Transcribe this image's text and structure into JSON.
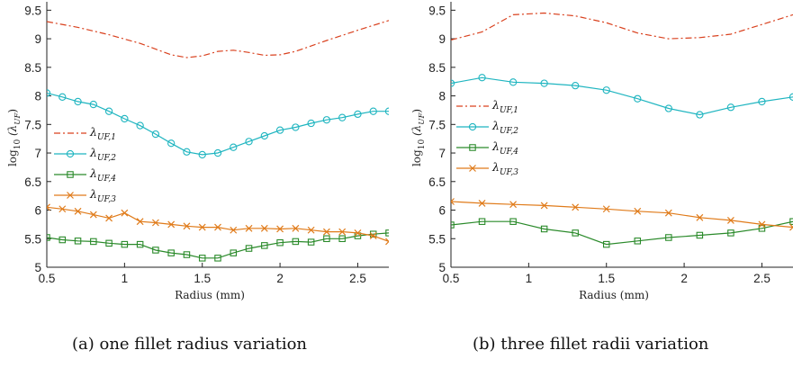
{
  "chart_data": [
    {
      "type": "line",
      "caption": "(a) one fillet radius variation",
      "xlabel": "Radius (mm)",
      "ylabel": "log10 (λUF)",
      "xlim": [
        0.5,
        2.7
      ],
      "ylim": [
        5,
        9.6
      ],
      "xticks": [
        "0.5",
        "1",
        "1.5",
        "2",
        "2.5"
      ],
      "yticks": [
        "5",
        "5.5",
        "6",
        "6.5",
        "7",
        "7.5",
        "8",
        "8.5",
        "9",
        "9.5"
      ],
      "legend_position": "left",
      "series": [
        {
          "name": "λUF,1",
          "color": "#d9411e",
          "marker": "none",
          "dash": "dashdot",
          "x": [
            0.5,
            0.7,
            0.9,
            1.1,
            1.3,
            1.4,
            1.5,
            1.6,
            1.7,
            1.8,
            1.9,
            2.0,
            2.1,
            2.3,
            2.5,
            2.7
          ],
          "y": [
            9.3,
            9.2,
            9.07,
            8.92,
            8.72,
            8.67,
            8.7,
            8.78,
            8.8,
            8.76,
            8.71,
            8.72,
            8.78,
            8.97,
            9.15,
            9.32
          ]
        },
        {
          "name": "λUF,2",
          "color": "#1fb5c0",
          "marker": "circle",
          "dash": "solid",
          "x": [
            0.5,
            0.6,
            0.7,
            0.8,
            0.9,
            1.0,
            1.1,
            1.2,
            1.3,
            1.4,
            1.5,
            1.6,
            1.7,
            1.8,
            1.9,
            2.0,
            2.1,
            2.2,
            2.3,
            2.4,
            2.5,
            2.6,
            2.7
          ],
          "y": [
            8.05,
            7.98,
            7.9,
            7.85,
            7.73,
            7.6,
            7.48,
            7.33,
            7.17,
            7.02,
            6.97,
            7.0,
            7.1,
            7.2,
            7.3,
            7.4,
            7.45,
            7.52,
            7.58,
            7.62,
            7.68,
            7.73,
            7.73
          ]
        },
        {
          "name": "λUF,4",
          "color": "#2a8a2a",
          "marker": "square",
          "dash": "solid",
          "x": [
            0.5,
            0.6,
            0.7,
            0.8,
            0.9,
            1.0,
            1.1,
            1.2,
            1.3,
            1.4,
            1.5,
            1.6,
            1.7,
            1.8,
            1.9,
            2.0,
            2.1,
            2.2,
            2.3,
            2.4,
            2.5,
            2.6,
            2.7
          ],
          "y": [
            5.52,
            5.48,
            5.46,
            5.45,
            5.42,
            5.4,
            5.4,
            5.3,
            5.25,
            5.22,
            5.16,
            5.16,
            5.25,
            5.33,
            5.38,
            5.43,
            5.45,
            5.44,
            5.5,
            5.5,
            5.55,
            5.58,
            5.6
          ]
        },
        {
          "name": "λUF,3",
          "color": "#e07b1a",
          "marker": "x",
          "dash": "solid",
          "x": [
            0.5,
            0.6,
            0.7,
            0.8,
            0.9,
            1.0,
            1.1,
            1.2,
            1.3,
            1.4,
            1.5,
            1.6,
            1.7,
            1.8,
            1.9,
            2.0,
            2.1,
            2.2,
            2.3,
            2.4,
            2.5,
            2.6,
            2.7
          ],
          "y": [
            6.05,
            6.02,
            5.98,
            5.92,
            5.86,
            5.95,
            5.8,
            5.78,
            5.75,
            5.72,
            5.7,
            5.7,
            5.65,
            5.68,
            5.68,
            5.67,
            5.68,
            5.65,
            5.62,
            5.62,
            5.6,
            5.55,
            5.45
          ]
        }
      ]
    },
    {
      "type": "line",
      "caption": "(b) three fillet radii variation",
      "xlabel": "Radius (mm)",
      "ylabel": "log10 (λUF)",
      "xlim": [
        0.5,
        2.7
      ],
      "ylim": [
        5,
        9.6
      ],
      "xticks": [
        "0.5",
        "1",
        "1.5",
        "2",
        "2.5"
      ],
      "yticks": [
        "5",
        "5.5",
        "6",
        "6.5",
        "7",
        "7.5",
        "8",
        "8.5",
        "9",
        "9.5"
      ],
      "legend_position": "left",
      "series": [
        {
          "name": "λUF,1",
          "color": "#d9411e",
          "marker": "none",
          "dash": "dashdot",
          "x": [
            0.5,
            0.7,
            0.9,
            1.1,
            1.3,
            1.5,
            1.7,
            1.9,
            2.1,
            2.3,
            2.5,
            2.7
          ],
          "y": [
            8.98,
            9.12,
            9.42,
            9.45,
            9.4,
            9.28,
            9.1,
            9.0,
            9.02,
            9.08,
            9.25,
            9.42
          ]
        },
        {
          "name": "λUF,2",
          "color": "#1fb5c0",
          "marker": "circle",
          "dash": "solid",
          "x": [
            0.5,
            0.7,
            0.9,
            1.1,
            1.3,
            1.5,
            1.7,
            1.9,
            2.1,
            2.3,
            2.5,
            2.7
          ],
          "y": [
            8.22,
            8.32,
            8.24,
            8.22,
            8.18,
            8.1,
            7.95,
            7.78,
            7.67,
            7.8,
            7.9,
            7.98
          ]
        },
        {
          "name": "λUF,4",
          "color": "#2a8a2a",
          "marker": "square",
          "dash": "solid",
          "x": [
            0.5,
            0.7,
            0.9,
            1.1,
            1.3,
            1.5,
            1.7,
            1.9,
            2.1,
            2.3,
            2.5,
            2.7
          ],
          "y": [
            5.74,
            5.8,
            5.8,
            5.67,
            5.6,
            5.4,
            5.46,
            5.52,
            5.56,
            5.6,
            5.68,
            5.8
          ]
        },
        {
          "name": "λUF,3",
          "color": "#e07b1a",
          "marker": "x",
          "dash": "solid",
          "x": [
            0.5,
            0.7,
            0.9,
            1.1,
            1.3,
            1.5,
            1.7,
            1.9,
            2.1,
            2.3,
            2.5,
            2.7
          ],
          "y": [
            6.15,
            6.12,
            6.1,
            6.08,
            6.05,
            6.02,
            5.98,
            5.95,
            5.87,
            5.82,
            5.75,
            5.7
          ]
        }
      ]
    }
  ]
}
